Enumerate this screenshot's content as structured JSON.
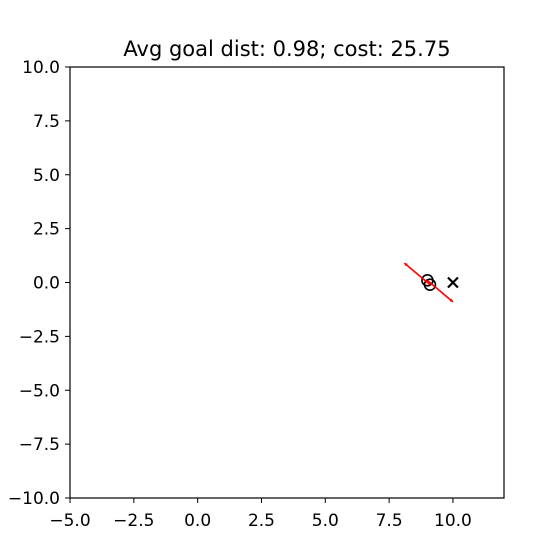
{
  "chart_data": {
    "type": "scatter",
    "title": "Avg goal dist: 0.98; cost: 25.75",
    "xlabel": "",
    "ylabel": "",
    "xlim": [
      -5.0,
      12.0
    ],
    "ylim": [
      -10.0,
      10.0
    ],
    "grid": false,
    "x_ticks": [
      -5.0,
      -2.5,
      0.0,
      2.5,
      5.0,
      7.5,
      10.0
    ],
    "x_tick_labels": [
      "−5.0",
      "−2.5",
      "0.0",
      "2.5",
      "5.0",
      "7.5",
      "10.0"
    ],
    "y_ticks": [
      10.0,
      7.5,
      5.0,
      2.5,
      0.0,
      -2.5,
      -5.0,
      -7.5,
      -10.0
    ],
    "y_tick_labels": [
      "10.0",
      "7.5",
      "5.0",
      "2.5",
      "0.0",
      "−2.5",
      "−5.0",
      "−7.5",
      "−10.0"
    ],
    "goal": {
      "x": 10.0,
      "y": 0.0,
      "marker": "x",
      "color": "#000000"
    },
    "agents": [
      {
        "x": 9.0,
        "y": 0.1,
        "marker": "circle",
        "edge_color": "#000000"
      },
      {
        "x": 9.1,
        "y": -0.1,
        "marker": "circle",
        "edge_color": "#000000"
      }
    ],
    "velocity_arrows": [
      {
        "x": 9.0,
        "y": 0.1,
        "dx": 0.1,
        "dy": -0.1,
        "color": "#ff0000"
      },
      {
        "x": 9.1,
        "y": -0.1,
        "dx": -0.1,
        "dy": 0.1,
        "color": "#ff0000"
      }
    ]
  }
}
